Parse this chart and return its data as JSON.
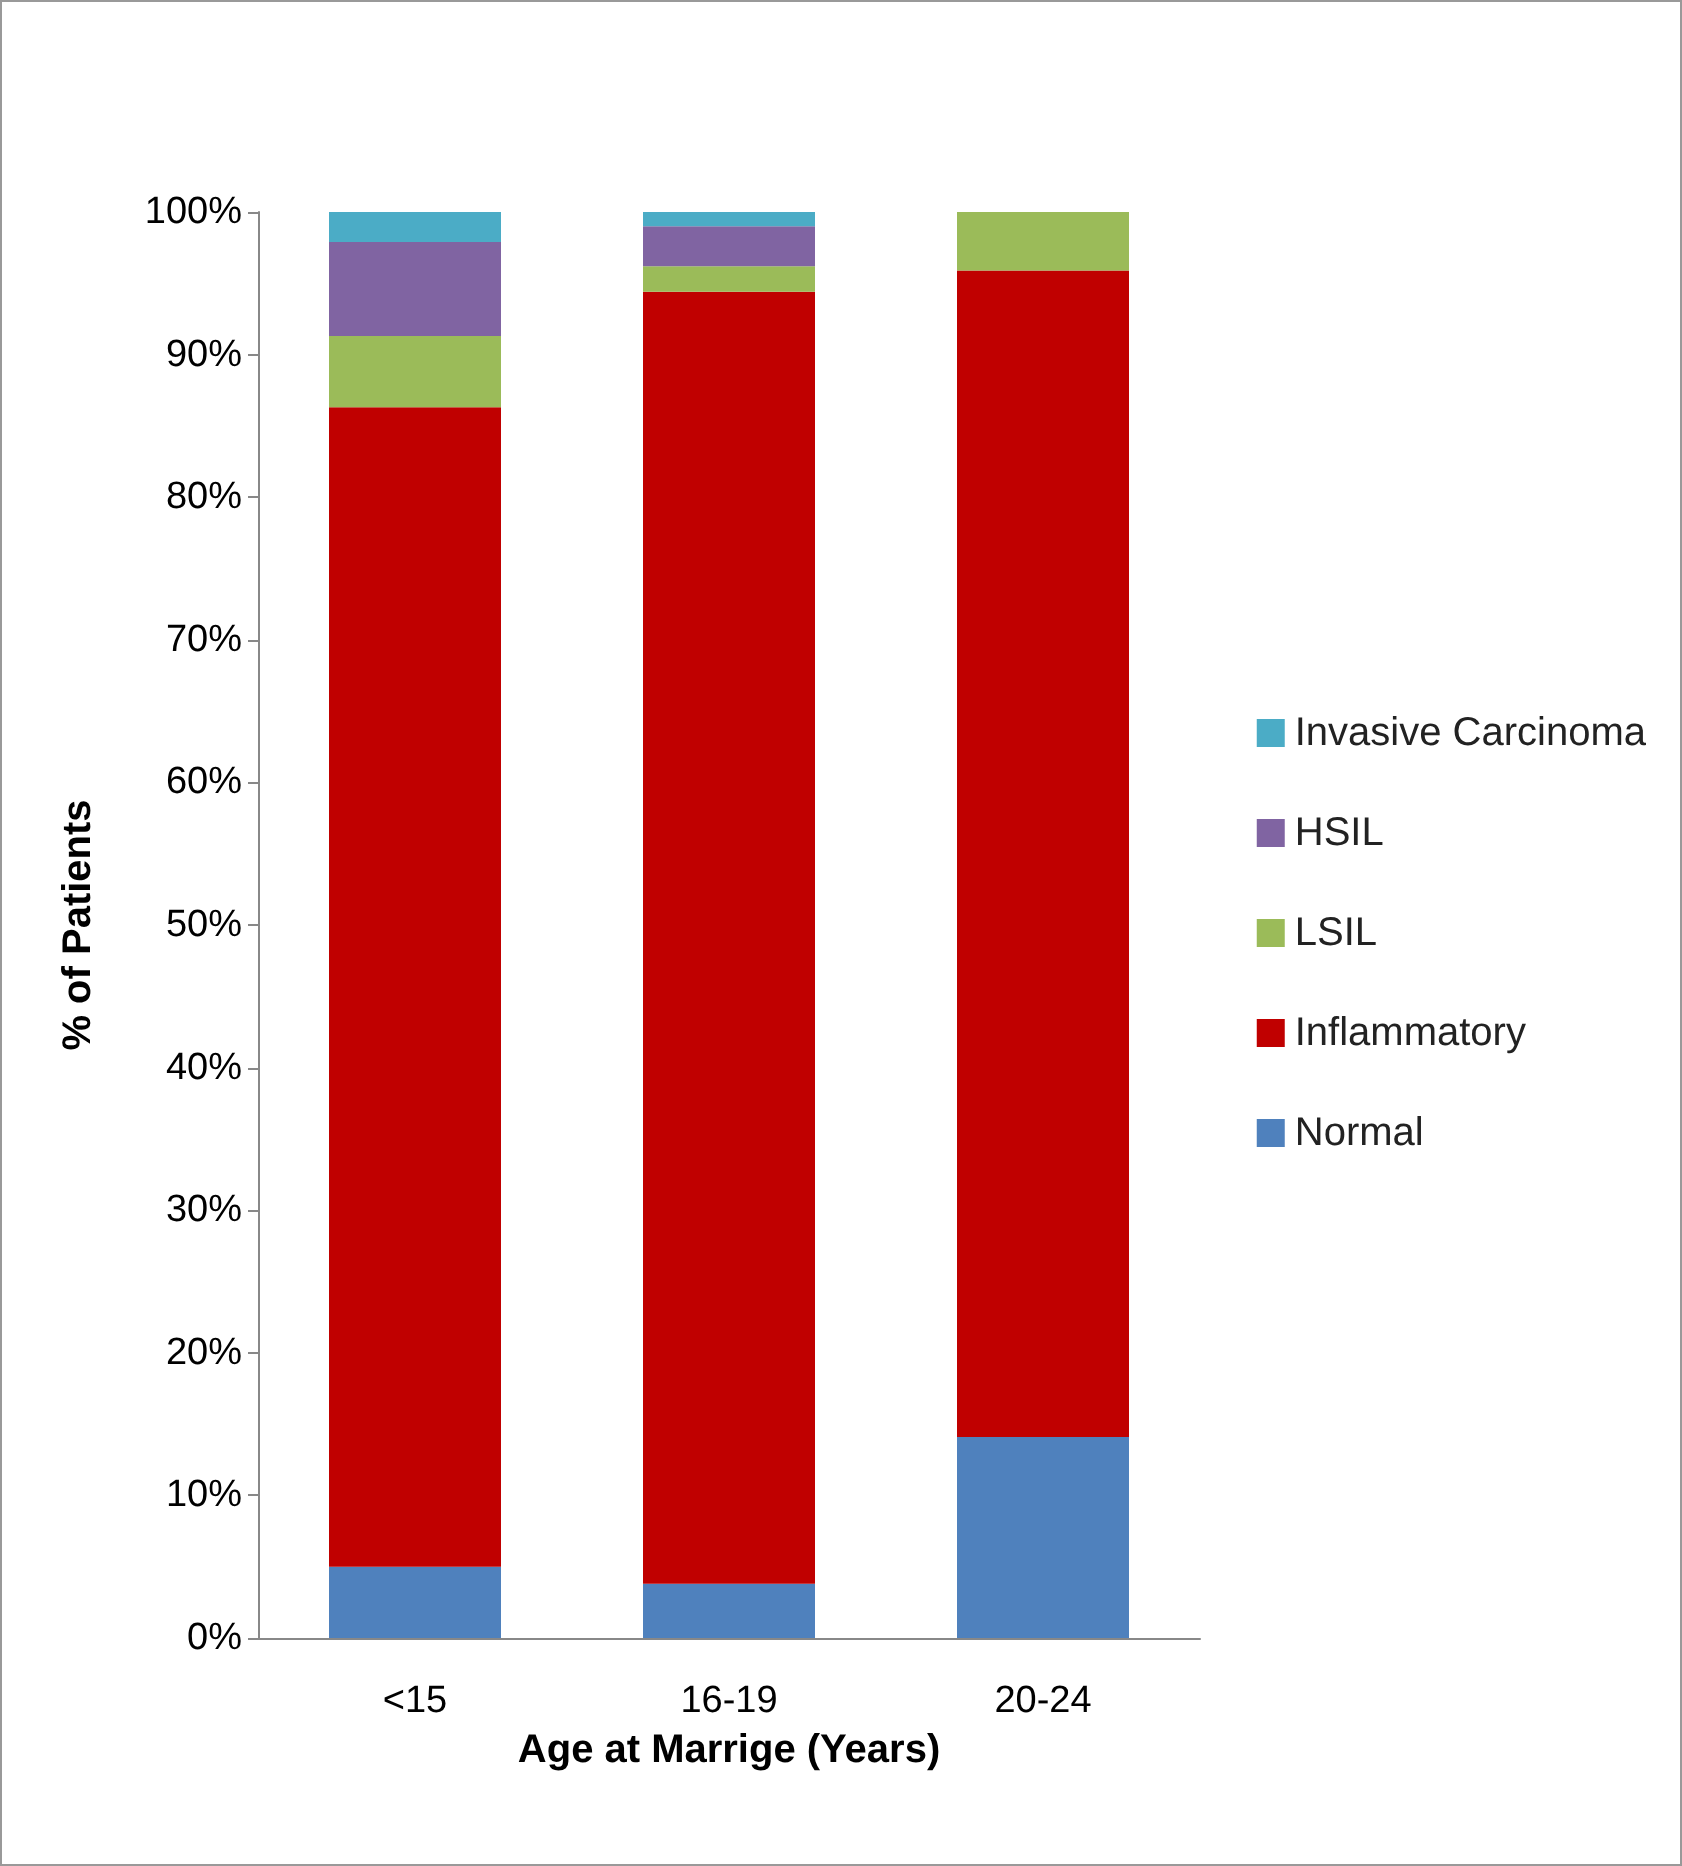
{
  "chart_data": {
    "type": "bar",
    "stacked": true,
    "xlabel": "Age at Marrige (Years)",
    "ylabel": "% of Patients",
    "categories": [
      "<15",
      "16-19",
      "20-24"
    ],
    "series": [
      {
        "name": "Normal",
        "color": "#4f81bd",
        "values": [
          5.0,
          3.8,
          14.1
        ]
      },
      {
        "name": "Inflammatory",
        "color": "#c00000",
        "values": [
          81.3,
          90.6,
          81.8
        ]
      },
      {
        "name": "LSIL",
        "color": "#9bbb59",
        "values": [
          5.0,
          1.8,
          4.1
        ]
      },
      {
        "name": "HSIL",
        "color": "#8064a2",
        "values": [
          6.6,
          2.8,
          0
        ]
      },
      {
        "name": "Invasive Carcinoma",
        "color": "#4bacc6",
        "values": [
          2.1,
          1.0,
          0
        ]
      }
    ],
    "ylim": [
      0,
      100
    ],
    "yticks": [
      {
        "value": 0,
        "label": "0%"
      },
      {
        "value": 10,
        "label": "10%"
      },
      {
        "value": 20,
        "label": "20%"
      },
      {
        "value": 30,
        "label": "30%"
      },
      {
        "value": 40,
        "label": "40%"
      },
      {
        "value": 50,
        "label": "50%"
      },
      {
        "value": 60,
        "label": "60%"
      },
      {
        "value": 70,
        "label": "70%"
      },
      {
        "value": 80,
        "label": "80%"
      },
      {
        "value": 90,
        "label": "90%"
      },
      {
        "value": 100,
        "label": "100%"
      }
    ],
    "grid": false,
    "legend": "right"
  }
}
